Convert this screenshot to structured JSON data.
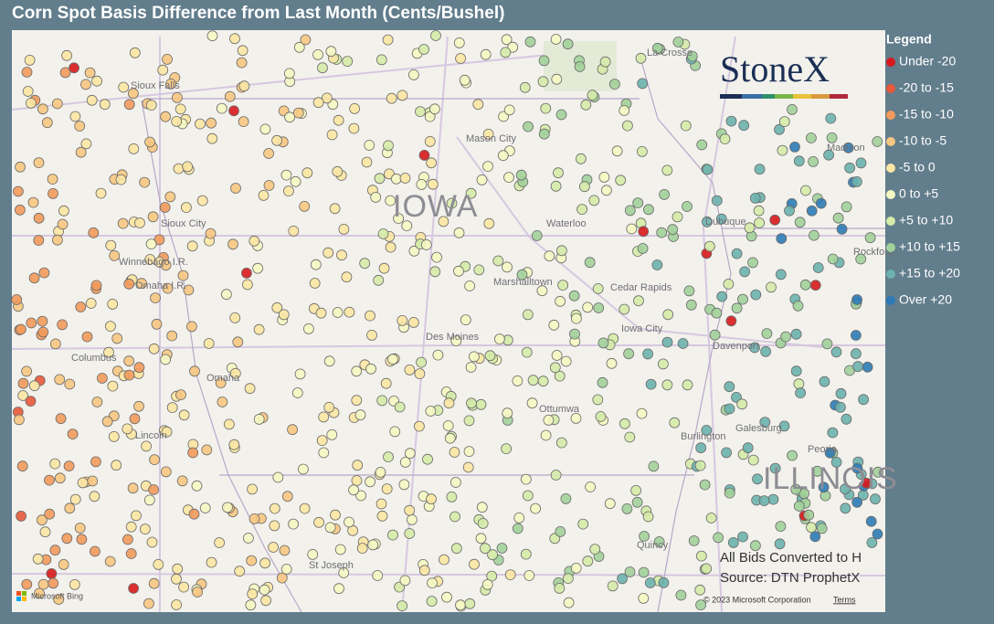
{
  "header": {
    "title": "Corn Spot Basis Difference from Last Month (Cents/Bushel)"
  },
  "legend": {
    "title": "Legend",
    "items": [
      {
        "label": "Under -20",
        "color": "#d7191c"
      },
      {
        "label": "-20 to -15",
        "color": "#e8583b"
      },
      {
        "label": "-15 to -10",
        "color": "#f29a5c"
      },
      {
        "label": "-10 to -5",
        "color": "#f7c681"
      },
      {
        "label": "-5 to 0",
        "color": "#fbe6a3"
      },
      {
        "label": "0 to +5",
        "color": "#f5f7c2"
      },
      {
        "label": "+5 to +10",
        "color": "#d5eba8"
      },
      {
        "label": "+10 to +15",
        "color": "#a2d29b"
      },
      {
        "label": "+15 to +20",
        "color": "#6cb2ae"
      },
      {
        "label": "Over +20",
        "color": "#2c7bb6"
      }
    ]
  },
  "map_labels": [
    "IOWA",
    "ILLINOIS",
    "Sioux Falls",
    "Sioux City",
    "Mason City",
    "Waterloo",
    "Dubuque",
    "Madison",
    "Rockford",
    "Winnebago I.R.",
    "Omaha I.R.",
    "Marshalltown",
    "Cedar Rapids",
    "Des Moines",
    "Iowa City",
    "Davenport",
    "Columbus",
    "Omaha",
    "Ottumwa",
    "Burlington",
    "Galesburg",
    "Peoria",
    "Lincoln",
    "St Joseph",
    "La Crosse",
    "Quincy"
  ],
  "logo": "StoneX",
  "notes": [
    "All Bids Converted to H",
    "Source: DTN ProphetX"
  ],
  "attribution": {
    "bing": "Microsoft Bing",
    "copyright": "© 2023 Microsoft Corporation",
    "terms": "Terms"
  }
}
